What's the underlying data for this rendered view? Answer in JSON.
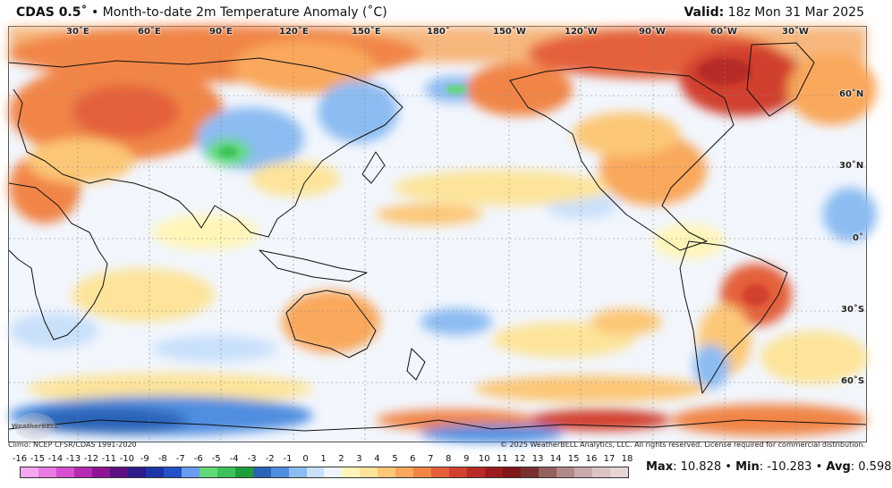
{
  "header": {
    "model": "CDAS 0.5˚",
    "separator": "•",
    "description": "Month-to-date 2m Temperature Anomaly (˚C)",
    "valid_label": "Valid:",
    "valid_time": "18z Mon 31 Mar 2025"
  },
  "map": {
    "longitude_labels": [
      "30˚E",
      "60˚E",
      "90˚E",
      "120˚E",
      "150˚E",
      "180˚",
      "150˚W",
      "120˚W",
      "90˚W",
      "60˚W",
      "30˚W"
    ],
    "latitude_labels": [
      "60˚N",
      "30˚N",
      "0˚",
      "30˚S",
      "60˚S"
    ],
    "logo_text": "WeatherBELL"
  },
  "credits": {
    "climo": "Climo: NCEP CFSR/CDAS 1991-2020",
    "copyright": "© 2025 WeatherBELL Analytics, LLC. All rights reserved. License required for commercial distribution."
  },
  "colorbar": {
    "ticks": [
      "-16",
      "-15",
      "-14",
      "-13",
      "-12",
      "-11",
      "-10",
      "-9",
      "-8",
      "-7",
      "-6",
      "-5",
      "-4",
      "-3",
      "-2",
      "-1",
      "0",
      "1",
      "2",
      "3",
      "4",
      "5",
      "6",
      "7",
      "8",
      "9",
      "10",
      "11",
      "12",
      "13",
      "14",
      "15",
      "16",
      "17",
      "18"
    ],
    "colors": [
      "#f7a6f2",
      "#e97ae2",
      "#d650cf",
      "#b52ab1",
      "#8e1493",
      "#5b1080",
      "#2e1a8a",
      "#1c36a8",
      "#2450c8",
      "#6a9cf0",
      "#62d978",
      "#3cc25a",
      "#1e9e3a",
      "#2a63b8",
      "#4f8ee0",
      "#8cbcf2",
      "#c9e0fa",
      "#eef4fd",
      "#fff5b8",
      "#fde49a",
      "#fcc777",
      "#f9a85c",
      "#f18546",
      "#e4603a",
      "#d1402f",
      "#b82a25",
      "#9c1c1d",
      "#801618",
      "#7a2f2f",
      "#946060",
      "#b08888",
      "#c9aaaa",
      "#dcc4c4",
      "#e7d5d5"
    ]
  },
  "stats": {
    "max_label": "Max",
    "max_value": ": 10.828",
    "min_label": "Min",
    "min_value": ": -10.283",
    "avg_label": "Avg",
    "avg_value": ": 0.598",
    "sep": "•"
  }
}
